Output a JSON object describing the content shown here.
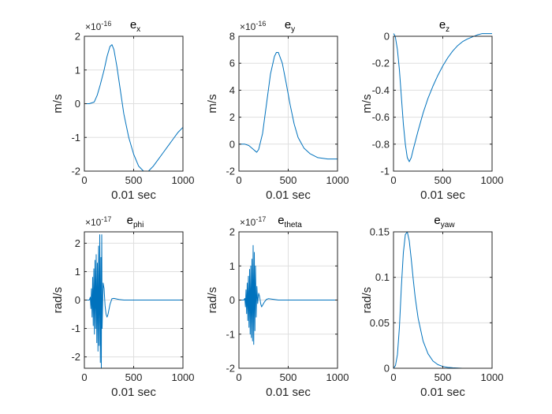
{
  "colors": {
    "line": "#0072BD",
    "grid": "#dfdfdf",
    "axis": "#262626",
    "background": "#ffffff"
  },
  "chart_data": [
    {
      "type": "line",
      "title": "e",
      "title_sub": "x",
      "xlabel": "0.01 sec",
      "ylabel": "m/s",
      "xlim": [
        0,
        1000
      ],
      "ylim": [
        -2,
        2
      ],
      "xticks": [
        0,
        500,
        1000
      ],
      "xtick_labels": [
        "0",
        "500",
        "1000"
      ],
      "yticks": [
        -2,
        -1,
        0,
        1,
        2
      ],
      "ytick_labels": [
        "-2",
        "-1",
        "0",
        "1",
        "2"
      ],
      "exponent_base": "×10",
      "exponent_power": "-16",
      "grid": true,
      "series": [
        {
          "name": "e_x",
          "x": [
            0,
            50,
            100,
            130,
            160,
            200,
            230,
            260,
            280,
            300,
            330,
            360,
            400,
            450,
            500,
            550,
            600,
            650,
            700,
            750,
            800,
            850,
            900,
            950,
            1000
          ],
          "y": [
            0,
            0,
            0.05,
            0.25,
            0.55,
            1.0,
            1.4,
            1.7,
            1.75,
            1.6,
            1.1,
            0.5,
            -0.3,
            -1.0,
            -1.5,
            -1.85,
            -2.0,
            -2.0,
            -1.85,
            -1.65,
            -1.45,
            -1.25,
            -1.05,
            -0.85,
            -0.7
          ]
        }
      ]
    },
    {
      "type": "line",
      "title": "e",
      "title_sub": "y",
      "xlabel": "0.01 sec",
      "ylabel": "m/s",
      "xlim": [
        0,
        1000
      ],
      "ylim": [
        -2,
        8
      ],
      "xticks": [
        0,
        500,
        1000
      ],
      "xtick_labels": [
        "0",
        "500",
        "1000"
      ],
      "yticks": [
        -2,
        0,
        2,
        4,
        6,
        8
      ],
      "ytick_labels": [
        "-2",
        "0",
        "2",
        "4",
        "6",
        "8"
      ],
      "exponent_base": "×10",
      "exponent_power": "-16",
      "grid": true,
      "series": [
        {
          "name": "e_y",
          "x": [
            0,
            60,
            100,
            140,
            180,
            200,
            240,
            280,
            320,
            360,
            380,
            400,
            440,
            480,
            520,
            560,
            600,
            660,
            720,
            800,
            900,
            1000
          ],
          "y": [
            0,
            0,
            -0.1,
            -0.35,
            -0.6,
            -0.4,
            0.8,
            3.0,
            5.2,
            6.5,
            6.8,
            6.8,
            6.0,
            4.5,
            2.9,
            1.5,
            0.5,
            -0.3,
            -0.7,
            -1.0,
            -1.1,
            -1.1
          ]
        }
      ]
    },
    {
      "type": "line",
      "title": "e",
      "title_sub": "z",
      "xlabel": "0.01 sec",
      "ylabel": "m/s",
      "xlim": [
        0,
        1000
      ],
      "ylim": [
        -1,
        0
      ],
      "xticks": [
        0,
        500,
        1000
      ],
      "xtick_labels": [
        "0",
        "500",
        "1000"
      ],
      "yticks": [
        -1,
        -0.8,
        -0.6,
        -0.4,
        -0.2,
        0
      ],
      "ytick_labels": [
        "-1",
        "-0.8",
        "-0.6",
        "-0.4",
        "-0.2",
        "0"
      ],
      "grid": true,
      "series": [
        {
          "name": "e_z",
          "x": [
            0,
            10,
            20,
            40,
            60,
            80,
            100,
            120,
            140,
            160,
            180,
            200,
            250,
            300,
            350,
            400,
            450,
            500,
            550,
            600,
            650,
            700,
            750,
            800,
            850,
            900,
            950,
            1000
          ],
          "y": [
            0.02,
            0.01,
            -0.01,
            -0.1,
            -0.25,
            -0.45,
            -0.65,
            -0.8,
            -0.9,
            -0.93,
            -0.9,
            -0.84,
            -0.7,
            -0.57,
            -0.46,
            -0.37,
            -0.29,
            -0.22,
            -0.16,
            -0.11,
            -0.07,
            -0.04,
            -0.02,
            -0.005,
            0.01,
            0.02,
            0.02,
            0.02
          ]
        }
      ]
    },
    {
      "type": "line",
      "title": "e",
      "title_sub": "phi",
      "xlabel": "0.01 sec",
      "ylabel": "rad/s",
      "xlim": [
        0,
        1000
      ],
      "ylim": [
        -2.4,
        2.4
      ],
      "xticks": [
        0,
        500,
        1000
      ],
      "xtick_labels": [
        "0",
        "500",
        "1000"
      ],
      "yticks": [
        -2,
        -1,
        0,
        1,
        2
      ],
      "ytick_labels": [
        "-2",
        "-1",
        "0",
        "1",
        "2"
      ],
      "exponent_base": "×10",
      "exponent_power": "-17",
      "grid": true,
      "series": [
        {
          "name": "e_phi",
          "x": [
            0,
            50,
            60,
            66,
            72,
            78,
            84,
            90,
            96,
            102,
            108,
            114,
            120,
            126,
            132,
            138,
            144,
            150,
            156,
            162,
            168,
            172,
            176,
            180,
            190,
            200,
            210,
            220,
            230,
            240,
            260,
            280,
            300,
            350,
            400,
            500,
            600,
            700,
            800,
            900,
            1000
          ],
          "y": [
            0,
            0,
            0.1,
            -0.3,
            0.4,
            -0.6,
            0.8,
            -0.9,
            1.1,
            -1.2,
            1.4,
            -1.0,
            1.6,
            -1.5,
            1.3,
            -1.8,
            1.9,
            -1.6,
            2.3,
            -2.2,
            1.5,
            -2.4,
            2.3,
            -1.0,
            0.6,
            0.4,
            -0.2,
            -0.5,
            -0.6,
            -0.5,
            -0.15,
            0.05,
            0.06,
            0.02,
            0,
            0,
            0,
            0,
            0,
            0,
            0
          ]
        }
      ]
    },
    {
      "type": "line",
      "title": "e",
      "title_sub": "theta",
      "xlabel": "0.01 sec",
      "ylabel": "rad/s",
      "xlim": [
        0,
        1000
      ],
      "ylim": [
        -2,
        2
      ],
      "xticks": [
        0,
        500,
        1000
      ],
      "xtick_labels": [
        "0",
        "500",
        "1000"
      ],
      "yticks": [
        -2,
        -1,
        0,
        1,
        2
      ],
      "ytick_labels": [
        "-2",
        "-1",
        "0",
        "1",
        "2"
      ],
      "exponent_base": "×10",
      "exponent_power": "-17",
      "grid": true,
      "series": [
        {
          "name": "e_theta",
          "x": [
            0,
            50,
            60,
            66,
            72,
            78,
            84,
            90,
            96,
            102,
            108,
            114,
            120,
            126,
            132,
            138,
            144,
            150,
            156,
            162,
            168,
            175,
            182,
            190,
            200,
            210,
            220,
            230,
            240,
            260,
            280,
            300,
            350,
            400,
            500,
            600,
            700,
            800,
            900,
            1000
          ],
          "y": [
            0,
            0,
            0.05,
            -0.2,
            0.3,
            -0.4,
            0.5,
            -0.6,
            0.7,
            -0.8,
            0.9,
            -1.0,
            1.0,
            -1.1,
            1.2,
            -1.2,
            1.6,
            -1.3,
            1.4,
            -0.9,
            1.0,
            -0.5,
            0.4,
            -0.1,
            0.2,
            0.1,
            -0.1,
            -0.2,
            -0.15,
            -0.05,
            0.02,
            0.04,
            0.02,
            0,
            0,
            0,
            0,
            0,
            0,
            0
          ]
        }
      ]
    },
    {
      "type": "line",
      "title": "e",
      "title_sub": "yaw",
      "xlabel": "0.01 sec",
      "ylabel": "rad/s",
      "xlim": [
        0,
        1000
      ],
      "ylim": [
        0,
        0.15
      ],
      "xticks": [
        0,
        500,
        1000
      ],
      "xtick_labels": [
        "0",
        "500",
        "1000"
      ],
      "yticks": [
        0,
        0.05,
        0.1,
        0.15
      ],
      "ytick_labels": [
        "0",
        "0.05",
        "0.1",
        "0.15"
      ],
      "grid": true,
      "series": [
        {
          "name": "e_yaw",
          "x": [
            0,
            20,
            40,
            60,
            80,
            100,
            120,
            140,
            160,
            180,
            200,
            220,
            250,
            300,
            350,
            400,
            450,
            500,
            550,
            600,
            700,
            800,
            900,
            1000
          ],
          "y": [
            0,
            0.003,
            0.015,
            0.045,
            0.09,
            0.127,
            0.147,
            0.15,
            0.14,
            0.12,
            0.098,
            0.078,
            0.055,
            0.03,
            0.016,
            0.008,
            0.004,
            0.002,
            0.001,
            0.0005,
            0,
            0,
            0,
            0
          ]
        }
      ]
    }
  ]
}
